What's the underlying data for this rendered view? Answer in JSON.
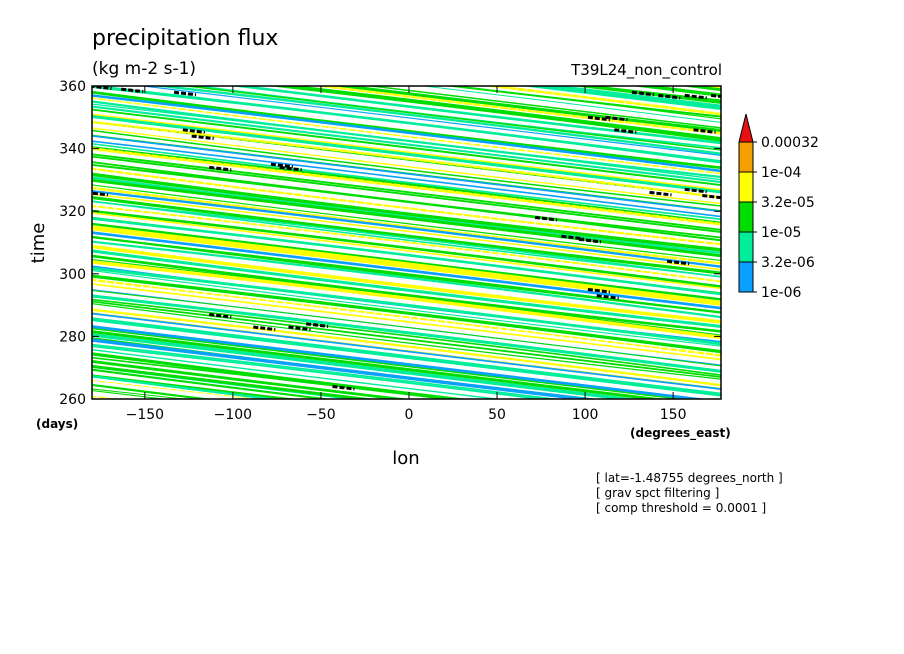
{
  "chart_data": {
    "type": "heatmap",
    "title": "precipitation flux",
    "units": "(kg m-2 s-1)",
    "experiment": "T39L24_non_control",
    "xlabel": "lon",
    "ylabel": "time",
    "x_unit_label": "(degrees_east)",
    "y_unit_label": "(days)",
    "xlim": [
      -180,
      177.19
    ],
    "ylim": [
      260,
      360
    ],
    "x_ticks": [
      -150,
      -100,
      -50,
      0,
      50,
      100,
      150
    ],
    "y_ticks": [
      260,
      280,
      300,
      320,
      340,
      360
    ],
    "grid": false,
    "legend": "right",
    "colorbar": {
      "levels": [
        "0.00032",
        "1e-04",
        "3.2e-05",
        "1e-05",
        "3.2e-06",
        "1e-06"
      ],
      "colors": [
        "#e81010",
        "#f5a000",
        "#ffff00",
        "#00dd00",
        "#00ee99",
        "#0aa0ff"
      ],
      "extend": "max"
    },
    "field_description": "westward-propagating diagonal bands of precipitation contours",
    "annotations": [
      "[ lat=-1.48755 degrees_north ]",
      "[ grav spct filtering ]",
      "[ comp threshold = 0.0001 ]"
    ]
  }
}
